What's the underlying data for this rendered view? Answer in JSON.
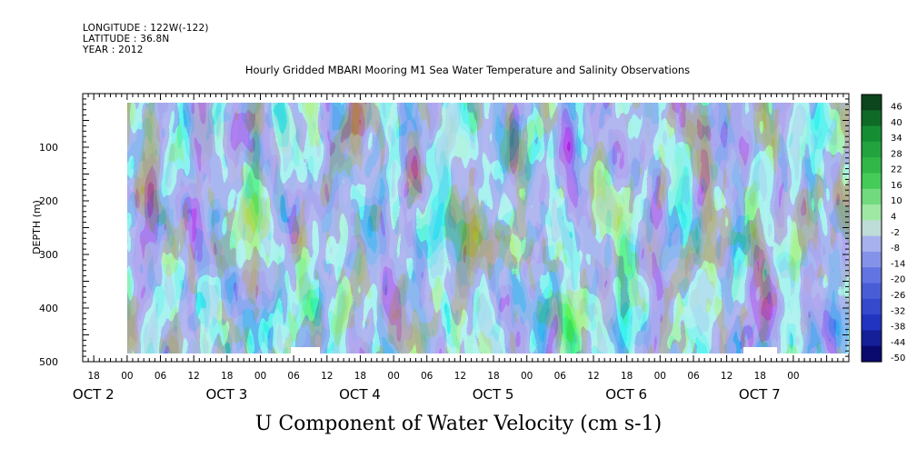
{
  "header": {
    "longitude": "LONGITUDE : 122W(-122)",
    "latitude": "LATITUDE : 36.8N",
    "year": "YEAR : 2012"
  },
  "chart_data": {
    "type": "heatmap",
    "title": "Hourly Gridded MBARI Mooring M1 Sea Water Temperature and Salinity Observations",
    "subtitle": "U Component of Water Velocity (cm s-1)",
    "ylabel": "DEPTH (m)",
    "xlabel": "",
    "ylim": [
      500,
      0
    ],
    "y_ticks": [
      100,
      200,
      300,
      400,
      500
    ],
    "x_range_hours": [
      -8,
      130
    ],
    "x_tick_labels": [
      "18",
      "00",
      "06",
      "12",
      "18",
      "00",
      "06",
      "12",
      "18",
      "00",
      "06",
      "12",
      "18",
      "00",
      "06",
      "12",
      "18",
      "00",
      "06",
      "12",
      "18",
      "00"
    ],
    "date_labels": [
      "OCT  2",
      "OCT  3",
      "OCT  4",
      "OCT  5",
      "OCT  6",
      "OCT  7"
    ],
    "colorbar_levels": [
      "46",
      "40",
      "34",
      "28",
      "22",
      "16",
      "10",
      "4",
      "-2",
      "-8",
      "-14",
      "-20",
      "-26",
      "-32",
      "-38",
      "-44",
      "-50"
    ],
    "colors": {
      "neg_dark": "#1a1f8c",
      "neg_mid": "#3b56d6",
      "neg_light": "#a8b3f0",
      "pos_light": "#b9f2b9",
      "pos_mid": "#3fdc5a",
      "pos_dark": "#0e5a1e"
    }
  }
}
